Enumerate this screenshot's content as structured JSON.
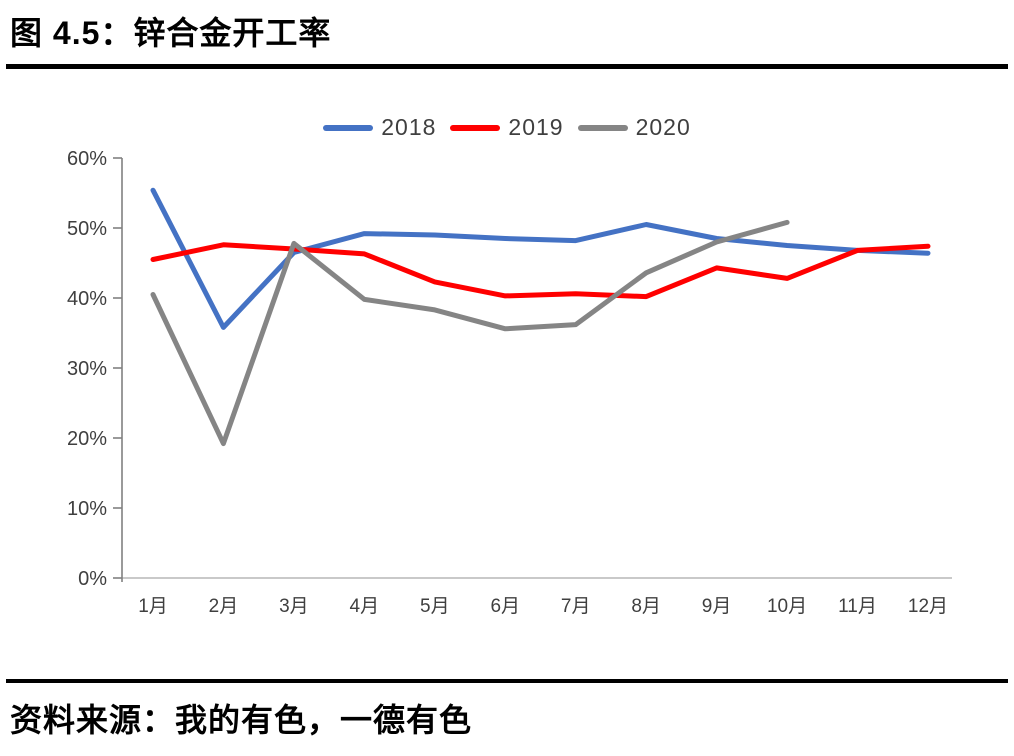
{
  "figure": {
    "title": "图 4.5：锌合金开工率",
    "source": "资料来源：我的有色，一德有色"
  },
  "chart_data": {
    "type": "line",
    "title": "图 4.5：锌合金开工率",
    "xlabel": "",
    "ylabel": "",
    "categories": [
      "1月",
      "2月",
      "3月",
      "4月",
      "5月",
      "6月",
      "7月",
      "8月",
      "9月",
      "10月",
      "11月",
      "12月"
    ],
    "series": [
      {
        "name": "2018",
        "color": "#4472C4",
        "values": [
          55.4,
          35.8,
          46.5,
          49.2,
          49.0,
          48.5,
          48.2,
          50.5,
          48.5,
          47.5,
          46.8,
          46.4
        ]
      },
      {
        "name": "2019",
        "color": "#FF0000",
        "values": [
          45.5,
          47.6,
          47.0,
          46.3,
          42.3,
          40.3,
          40.6,
          40.2,
          44.3,
          42.8,
          46.8,
          47.4
        ]
      },
      {
        "name": "2020",
        "color": "#858585",
        "values": [
          40.5,
          19.2,
          47.8,
          39.8,
          38.3,
          35.6,
          36.2,
          43.6,
          48.0,
          50.8
        ]
      }
    ],
    "ylim": [
      0,
      60
    ],
    "ytick_step": 10,
    "ytick_labels": [
      "0%",
      "10%",
      "20%",
      "30%",
      "40%",
      "50%",
      "60%"
    ],
    "legend_position": "top",
    "grid": false,
    "axis_color": "#808080",
    "baseline_color": "#c9c9c9",
    "label_color": "#3f3f3f"
  }
}
